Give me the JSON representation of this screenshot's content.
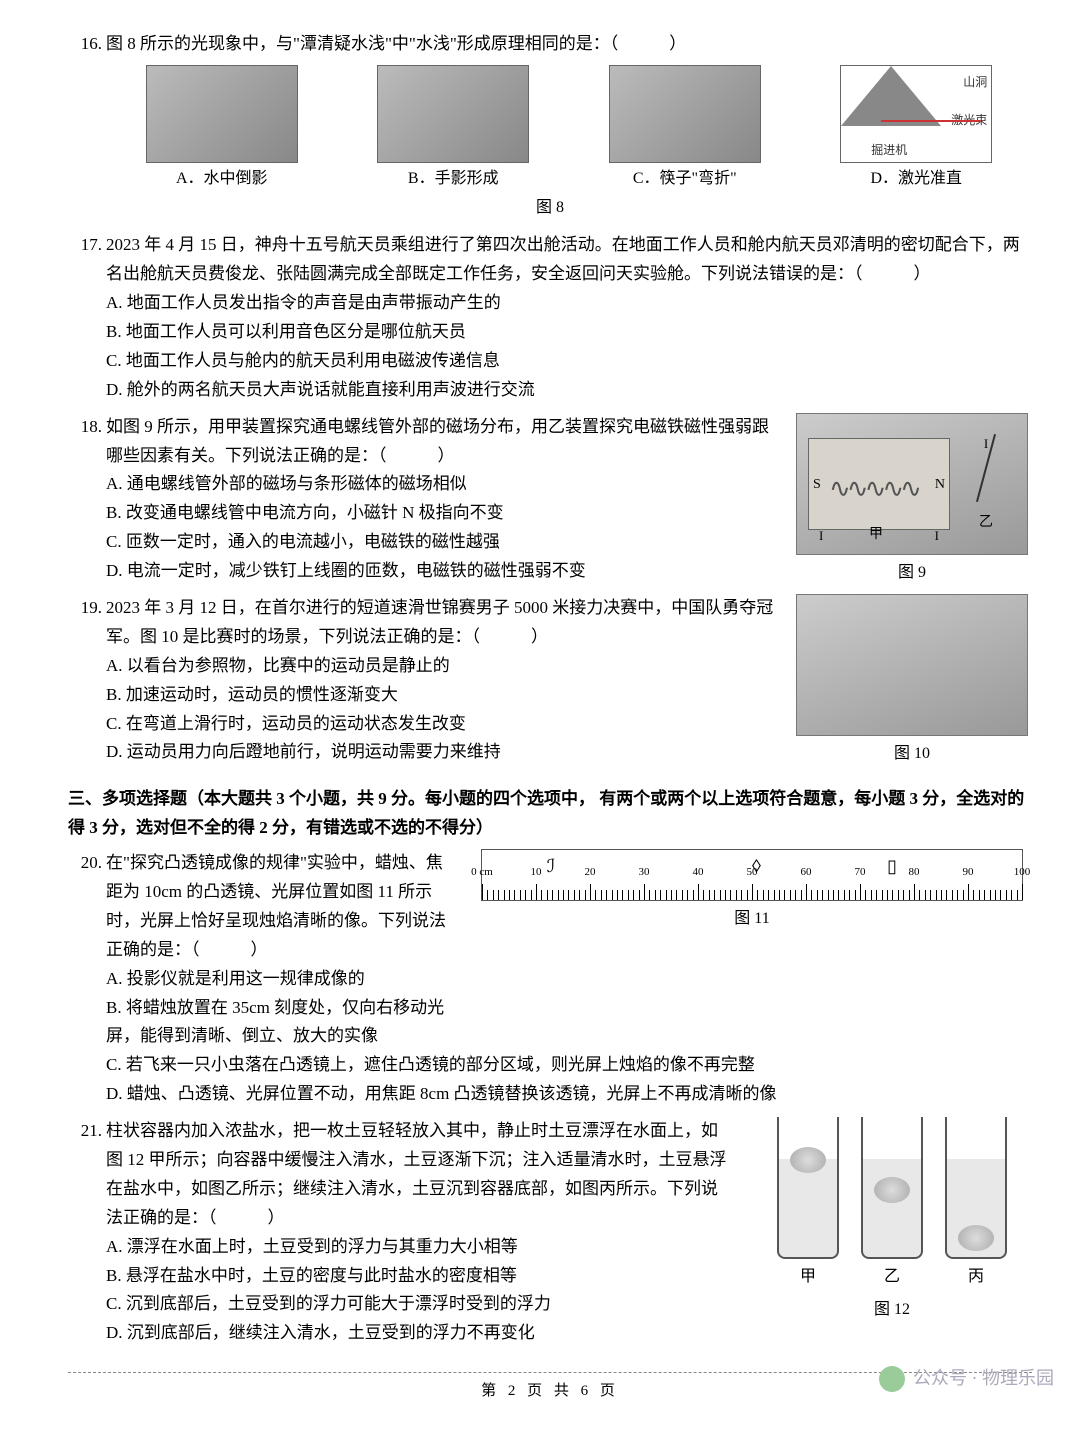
{
  "q16": {
    "num": "16.",
    "text": "图 8 所示的光现象中，与\"潭清疑水浅\"中\"水浅\"形成原理相同的是：（　　　）",
    "opts": {
      "A": "A．水中倒影",
      "B": "B．手影形成",
      "C": "C．筷子\"弯折\"",
      "D": "D．激光准直"
    },
    "fig_cap": "图 8",
    "diag_labels": {
      "cave": "山洞",
      "laser": "激光束",
      "machine": "掘进机"
    }
  },
  "q17": {
    "num": "17.",
    "text": "2023 年 4 月 15 日，神舟十五号航天员乘组进行了第四次出舱活动。在地面工作人员和舱内航天员邓清明的密切配合下，两名出舱航天员费俊龙、张陆圆满完成全部既定工作任务，安全返回问天实验舱。下列说法错误的是：（　　　）",
    "opts": {
      "A": "A. 地面工作人员发出指令的声音是由声带振动产生的",
      "B": "B. 地面工作人员可以利用音色区分是哪位航天员",
      "C": "C. 地面工作人员与舱内的航天员利用电磁波传递信息",
      "D": "D. 舱外的两名航天员大声说话就能直接利用声波进行交流"
    }
  },
  "q18": {
    "num": "18.",
    "text": "如图 9 所示，用甲装置探究通电螺线管外部的磁场分布，用乙装置探究电磁铁磁性强弱跟哪些因素有关。下列说法正确的是：（　　　）",
    "opts": {
      "A": "A. 通电螺线管外部的磁场与条形磁体的磁场相似",
      "B": "B. 改变通电螺线管中电流方向，小磁针 N 极指向不变",
      "C": "C. 匝数一定时，通入的电流越小，电磁铁的磁性越强",
      "D": "D. 电流一定时，减少铁钉上线圈的匝数，电磁铁的磁性强弱不变"
    },
    "fig_cap": "图 9",
    "labels": {
      "S": "S",
      "N": "N",
      "I": "I",
      "jia": "甲",
      "yi": "乙"
    }
  },
  "q19": {
    "num": "19.",
    "text": "2023 年 3 月 12 日，在首尔进行的短道速滑世锦赛男子 5000 米接力决赛中，中国队勇夺冠军。图 10 是比赛时的场景，下列说法正确的是：（　　　）",
    "opts": {
      "A": "A. 以看台为参照物，比赛中的运动员是静止的",
      "B": "B. 加速运动时，运动员的惯性逐渐变大",
      "C": "C. 在弯道上滑行时，运动员的运动状态发生改变",
      "D": "D. 运动员用力向后蹬地前行，说明运动需要力来维持"
    },
    "fig_cap": "图 10"
  },
  "section3": "三、多项选择题（本大题共 3 个小题，共 9 分。每小题的四个选项中， 有两个或两个以上选项符合题意，每小题 3 分，全选对的得 3 分，选对但不全的得 2 分，有错选或不选的不得分）",
  "q20": {
    "num": "20.",
    "text": "在\"探究凸透镜成像的规律\"实验中，蜡烛、焦距为 10cm 的凸透镜、光屏位置如图 11 所示时，光屏上恰好呈现烛焰清晰的像。下列说法正确的是：（　　　）",
    "opts": {
      "A": "A. 投影仪就是利用这一规律成像的",
      "B": "B. 将蜡烛放置在 35cm 刻度处，仅向右移动光屏，能得到清晰、倒立、放大的实像",
      "C": "C. 若飞来一只小虫落在凸透镜上，遮住凸透镜的部分区域，则光屏上烛焰的像不再完整",
      "D": "D. 蜡烛、凸透镜、光屏位置不动，用焦距 8cm 凸透镜替换该透镜，光屏上不再成清晰的像"
    },
    "fig_cap": "图 11",
    "ruler": {
      "ticks": [
        0,
        10,
        20,
        30,
        40,
        50,
        60,
        70,
        80,
        90,
        100
      ],
      "unit_label": "0 cm",
      "candle_pos_pct": 12,
      "lens_pos_pct": 50,
      "screen_pos_pct": 75
    }
  },
  "q21": {
    "num": "21.",
    "text": "柱状容器内加入浓盐水，把一枚土豆轻轻放入其中，静止时土豆漂浮在水面上，如图 12 甲所示；向容器中缓慢注入清水，土豆逐渐下沉；注入适量清水时，土豆悬浮在盐水中，如图乙所示；继续注入清水，土豆沉到容器底部，如图丙所示。下列说法正确的是：（　　　）",
    "opts": {
      "A": "A. 漂浮在水面上时，土豆受到的浮力与其重力大小相等",
      "B": "B. 悬浮在盐水中时，土豆的密度与此时盐水的密度相等",
      "C": "C. 沉到底部后，土豆受到的浮力可能大于漂浮时受到的浮力",
      "D": "D. 沉到底部后，继续注入清水，土豆受到的浮力不再变化"
    },
    "fig_cap": "图 12",
    "labels": {
      "jia": "甲",
      "yi": "乙",
      "bing": "丙"
    },
    "potato_top": {
      "jia": 30,
      "yi": 60,
      "bing": 108
    }
  },
  "footer": "第 2 页 共 6 页",
  "watermark": "公众号 · 物理乐园"
}
